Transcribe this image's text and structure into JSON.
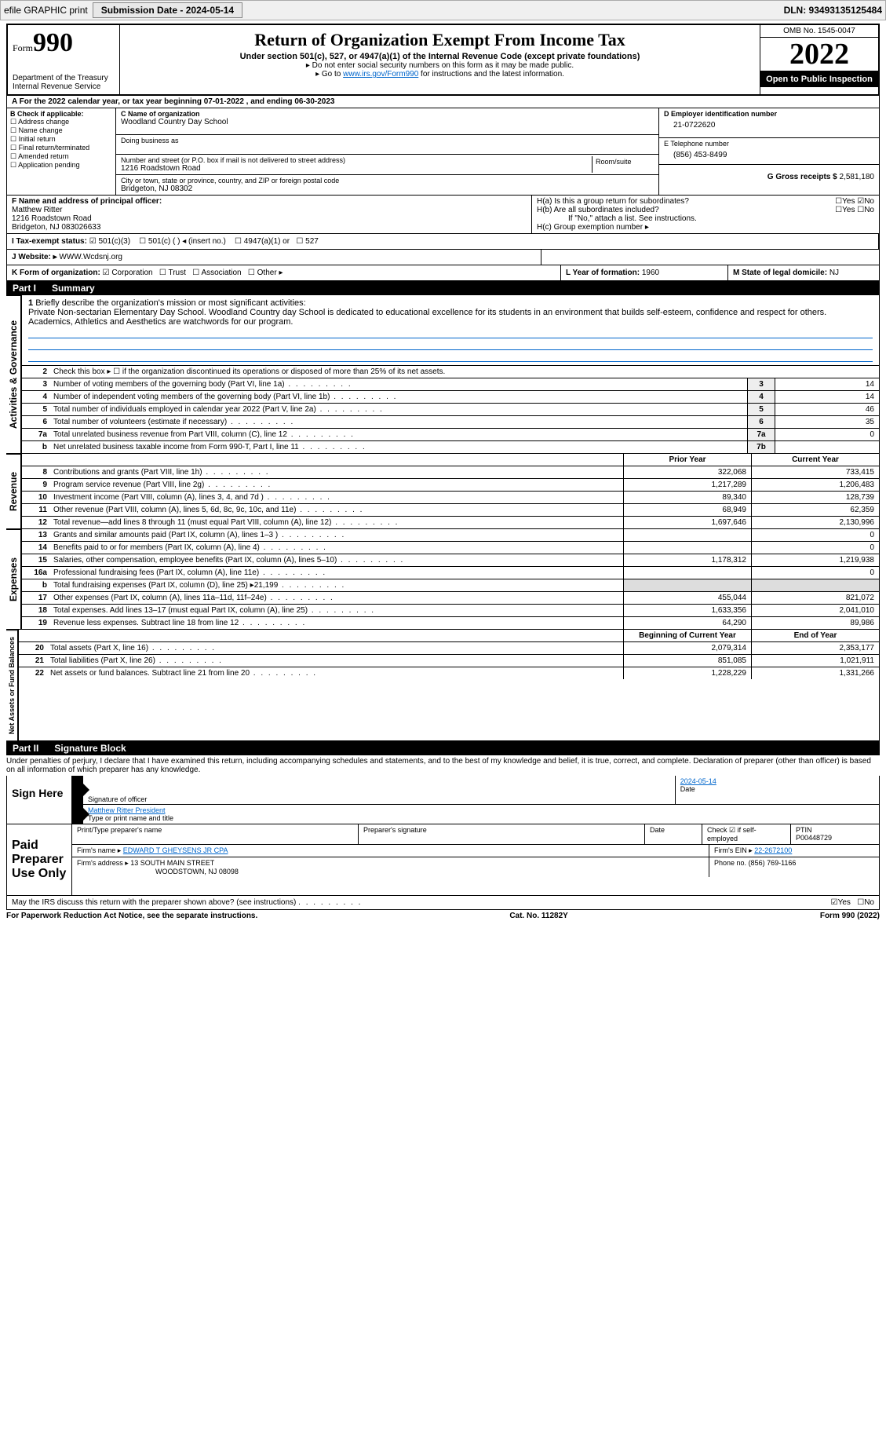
{
  "topbar": {
    "efile": "efile GRAPHIC print",
    "submission_label": "Submission Date - 2024-05-14",
    "dln": "DLN: 93493135125484"
  },
  "header": {
    "form_prefix": "Form",
    "form_number": "990",
    "title": "Return of Organization Exempt From Income Tax",
    "subtitle": "Under section 501(c), 527, or 4947(a)(1) of the Internal Revenue Code (except private foundations)",
    "note1": "▸ Do not enter social security numbers on this form as it may be made public.",
    "note2_pre": "▸ Go to ",
    "note2_link": "www.irs.gov/Form990",
    "note2_post": " for instructions and the latest information.",
    "dept": "Department of the Treasury",
    "irs": "Internal Revenue Service",
    "omb": "OMB No. 1545-0047",
    "year": "2022",
    "open": "Open to Public Inspection"
  },
  "section_a": {
    "a_line": "A For the 2022 calendar year, or tax year beginning 07-01-2022      , and ending 06-30-2023",
    "b_label": "B Check if applicable:",
    "b_items": [
      "Address change",
      "Name change",
      "Initial return",
      "Final return/terminated",
      "Amended return",
      "Application pending"
    ],
    "c_label": "C Name of organization",
    "c_name": "Woodland Country Day School",
    "dba_label": "Doing business as",
    "addr_label": "Number and street (or P.O. box if mail is not delivered to street address)",
    "room_label": "Room/suite",
    "addr": "1216 Roadstown Road",
    "city_label": "City or town, state or province, country, and ZIP or foreign postal code",
    "city": "Bridgeton, NJ  08302",
    "d_label": "D Employer identification number",
    "d_val": "21-0722620",
    "e_label": "E Telephone number",
    "e_val": "(856) 453-8499",
    "g_label": "G Gross receipts $",
    "g_val": "2,581,180",
    "f_label": "F  Name and address of principal officer:",
    "f_name": "Matthew Ritter",
    "f_addr1": "1216 Roadstown Road",
    "f_addr2": "Bridgeton, NJ  083026633",
    "ha_label": "H(a)  Is this a group return for subordinates?",
    "hb_label": "H(b)  Are all subordinates included?",
    "h_note": "If \"No,\" attach a list. See instructions.",
    "hc_label": "H(c)  Group exemption number ▸",
    "yes": "Yes",
    "no": "No",
    "i_label": "I  Tax-exempt status:",
    "i_501c3": "501(c)(3)",
    "i_501c": "501(c) (  ) ◂ (insert no.)",
    "i_4947": "4947(a)(1) or",
    "i_527": "527",
    "j_label": "J  Website: ▸",
    "j_val": "WWW.Wcdsnj.org",
    "k_label": "K Form of organization:",
    "k_corp": "Corporation",
    "k_trust": "Trust",
    "k_assoc": "Association",
    "k_other": "Other ▸",
    "l_label": "L Year of formation:",
    "l_val": "1960",
    "m_label": "M State of legal domicile:",
    "m_val": "NJ"
  },
  "part1": {
    "label": "Part I",
    "title": "Summary",
    "q1_label": "1",
    "q1_text": "Briefly describe the organization's mission or most significant activities:",
    "q1_val": "Private Non-sectarian Elementary Day School. Woodland Country day School is dedicated to educational excellence for its students in an environment that builds self-esteem, confidence and respect for others. Academics, Athletics and Aesthetics are watchwords for our program.",
    "q2_text": "Check this box ▸ ☐  if the organization discontinued its operations or disposed of more than 25% of its net assets."
  },
  "tabs": {
    "gov": "Activities & Governance",
    "rev": "Revenue",
    "exp": "Expenses",
    "net": "Net Assets or Fund Balances"
  },
  "gov_rows": [
    {
      "n": "3",
      "t": "Number of voting members of the governing body (Part VI, line 1a)",
      "b": "3",
      "v": "14"
    },
    {
      "n": "4",
      "t": "Number of independent voting members of the governing body (Part VI, line 1b)",
      "b": "4",
      "v": "14"
    },
    {
      "n": "5",
      "t": "Total number of individuals employed in calendar year 2022 (Part V, line 2a)",
      "b": "5",
      "v": "46"
    },
    {
      "n": "6",
      "t": "Total number of volunteers (estimate if necessary)",
      "b": "6",
      "v": "35"
    },
    {
      "n": "7a",
      "t": "Total unrelated business revenue from Part VIII, column (C), line 12",
      "b": "7a",
      "v": "0"
    },
    {
      "n": "b",
      "t": "Net unrelated business taxable income from Form 990-T, Part I, line 11",
      "b": "7b",
      "v": ""
    }
  ],
  "col_hdrs": {
    "prior": "Prior Year",
    "current": "Current Year",
    "boy": "Beginning of Current Year",
    "eoy": "End of Year"
  },
  "rev_rows": [
    {
      "n": "8",
      "t": "Contributions and grants (Part VIII, line 1h)",
      "p": "322,068",
      "c": "733,415"
    },
    {
      "n": "9",
      "t": "Program service revenue (Part VIII, line 2g)",
      "p": "1,217,289",
      "c": "1,206,483"
    },
    {
      "n": "10",
      "t": "Investment income (Part VIII, column (A), lines 3, 4, and 7d )",
      "p": "89,340",
      "c": "128,739"
    },
    {
      "n": "11",
      "t": "Other revenue (Part VIII, column (A), lines 5, 6d, 8c, 9c, 10c, and 11e)",
      "p": "68,949",
      "c": "62,359"
    },
    {
      "n": "12",
      "t": "Total revenue—add lines 8 through 11 (must equal Part VIII, column (A), line 12)",
      "p": "1,697,646",
      "c": "2,130,996"
    }
  ],
  "exp_rows": [
    {
      "n": "13",
      "t": "Grants and similar amounts paid (Part IX, column (A), lines 1–3 )",
      "p": "",
      "c": "0"
    },
    {
      "n": "14",
      "t": "Benefits paid to or for members (Part IX, column (A), line 4)",
      "p": "",
      "c": "0"
    },
    {
      "n": "15",
      "t": "Salaries, other compensation, employee benefits (Part IX, column (A), lines 5–10)",
      "p": "1,178,312",
      "c": "1,219,938"
    },
    {
      "n": "16a",
      "t": "Professional fundraising fees (Part IX, column (A), line 11e)",
      "p": "",
      "c": "0"
    },
    {
      "n": "b",
      "t": "Total fundraising expenses (Part IX, column (D), line 25) ▸21,199",
      "p": "SHADE",
      "c": "SHADE"
    },
    {
      "n": "17",
      "t": "Other expenses (Part IX, column (A), lines 11a–11d, 11f–24e)",
      "p": "455,044",
      "c": "821,072"
    },
    {
      "n": "18",
      "t": "Total expenses. Add lines 13–17 (must equal Part IX, column (A), line 25)",
      "p": "1,633,356",
      "c": "2,041,010"
    },
    {
      "n": "19",
      "t": "Revenue less expenses. Subtract line 18 from line 12",
      "p": "64,290",
      "c": "89,986"
    }
  ],
  "net_rows": [
    {
      "n": "20",
      "t": "Total assets (Part X, line 16)",
      "p": "2,079,314",
      "c": "2,353,177"
    },
    {
      "n": "21",
      "t": "Total liabilities (Part X, line 26)",
      "p": "851,085",
      "c": "1,021,911"
    },
    {
      "n": "22",
      "t": "Net assets or fund balances. Subtract line 21 from line 20",
      "p": "1,228,229",
      "c": "1,331,266"
    }
  ],
  "part2": {
    "label": "Part II",
    "title": "Signature Block",
    "penalty": "Under penalties of perjury, I declare that I have examined this return, including accompanying schedules and statements, and to the best of my knowledge and belief, it is true, correct, and complete. Declaration of preparer (other than officer) is based on all information of which preparer has any knowledge."
  },
  "sign": {
    "here": "Sign Here",
    "sig_label": "Signature of officer",
    "date_label": "Date",
    "date_val": "2024-05-14",
    "name_val": "Matthew Ritter  President",
    "name_label": "Type or print name and title"
  },
  "paid": {
    "label": "Paid Preparer Use Only",
    "prep_name_label": "Print/Type preparer's name",
    "prep_sig_label": "Preparer's signature",
    "date_label": "Date",
    "check_label": "Check ☑ if self-employed",
    "ptin_label": "PTIN",
    "ptin_val": "P00448729",
    "firm_label": "Firm's name    ▸",
    "firm_val": "EDWARD T GHEYSENS JR CPA",
    "ein_label": "Firm's EIN ▸",
    "ein_val": "22-2672100",
    "addr_label": "Firm's address ▸",
    "addr_val1": "13 SOUTH MAIN STREET",
    "addr_val2": "WOODSTOWN, NJ  08098",
    "phone_label": "Phone no.",
    "phone_val": "(856) 769-1166"
  },
  "discuss": {
    "text": "May the IRS discuss this return with the preparer shown above? (see instructions)",
    "yes": "Yes",
    "no": "No"
  },
  "footer": {
    "left": "For Paperwork Reduction Act Notice, see the separate instructions.",
    "mid": "Cat. No. 11282Y",
    "right": "Form 990 (2022)"
  }
}
